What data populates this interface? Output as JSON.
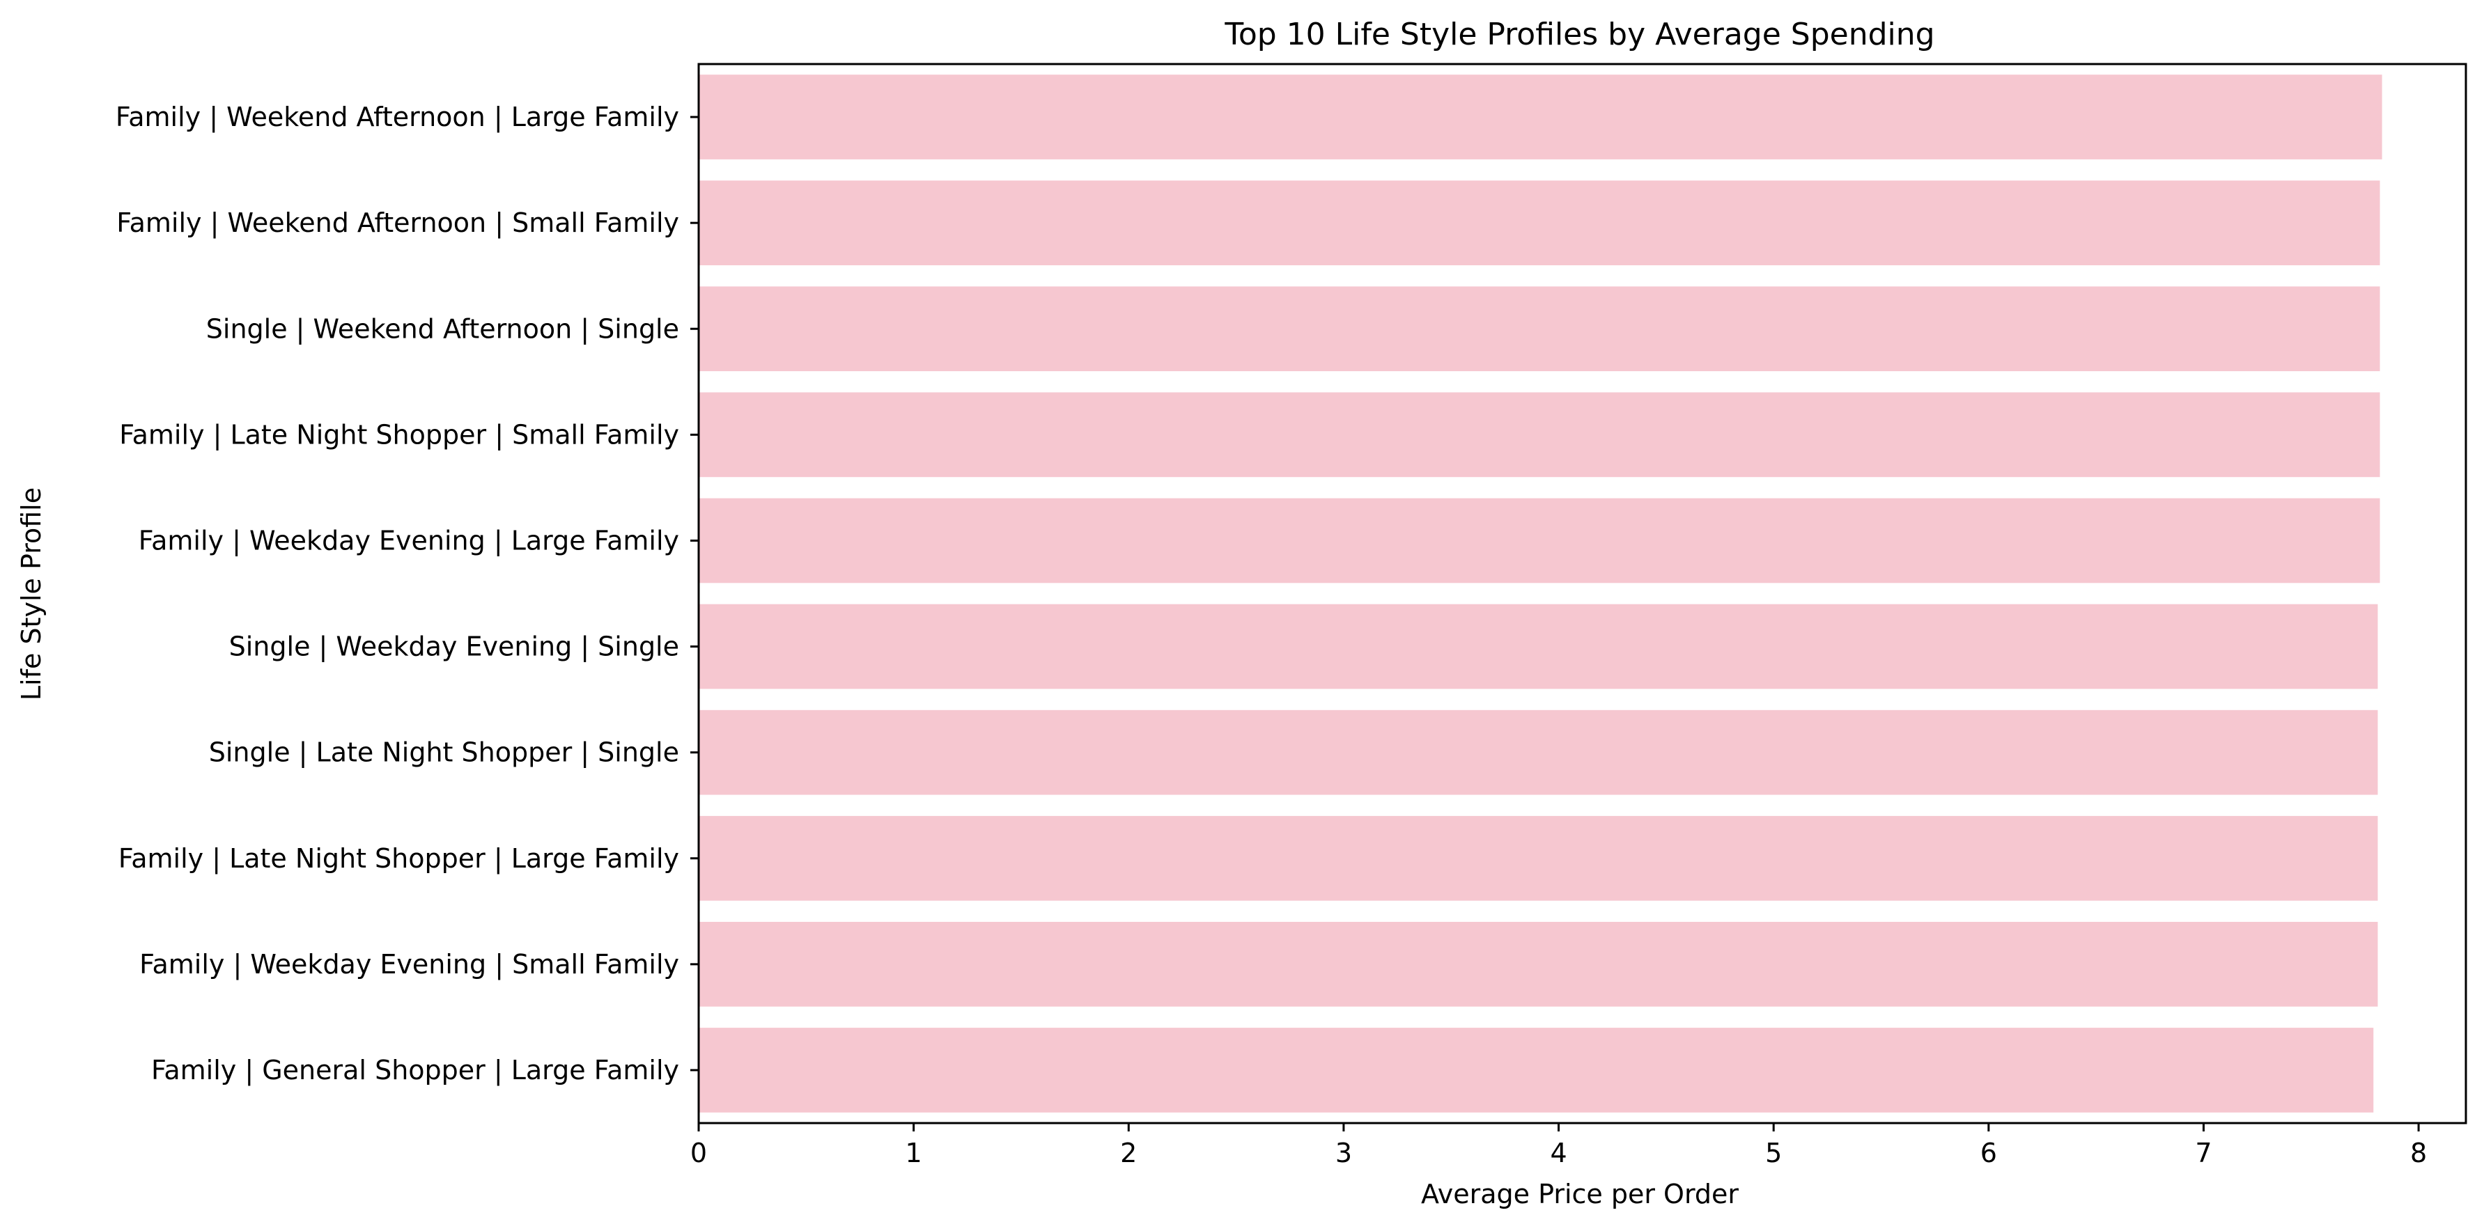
{
  "chart_data": {
    "type": "bar",
    "orientation": "horizontal",
    "title": "Top 10 Life Style Profiles by Average Spending",
    "xlabel": "Average Price per Order",
    "ylabel": "Life Style Profile",
    "categories": [
      "Family | Weekend Afternoon | Large Family",
      "Family | Weekend Afternoon | Small Family",
      "Single | Weekend Afternoon | Single",
      "Family | Late Night Shopper | Small Family",
      "Family | Weekday Evening | Large Family",
      "Single | Weekday Evening | Single",
      "Single | Late Night Shopper | Single",
      "Family | Late Night Shopper | Large Family",
      "Family | Weekday Evening | Small Family",
      "Family | General Shopper | Large Family"
    ],
    "values": [
      7.83,
      7.82,
      7.82,
      7.82,
      7.82,
      7.81,
      7.81,
      7.81,
      7.81,
      7.79
    ],
    "xlim": [
      0,
      8.22
    ],
    "xticks": [
      0,
      1,
      2,
      3,
      4,
      5,
      6,
      7,
      8
    ],
    "bar_color": "#f6c7d0",
    "grid": false,
    "legend": "none"
  }
}
